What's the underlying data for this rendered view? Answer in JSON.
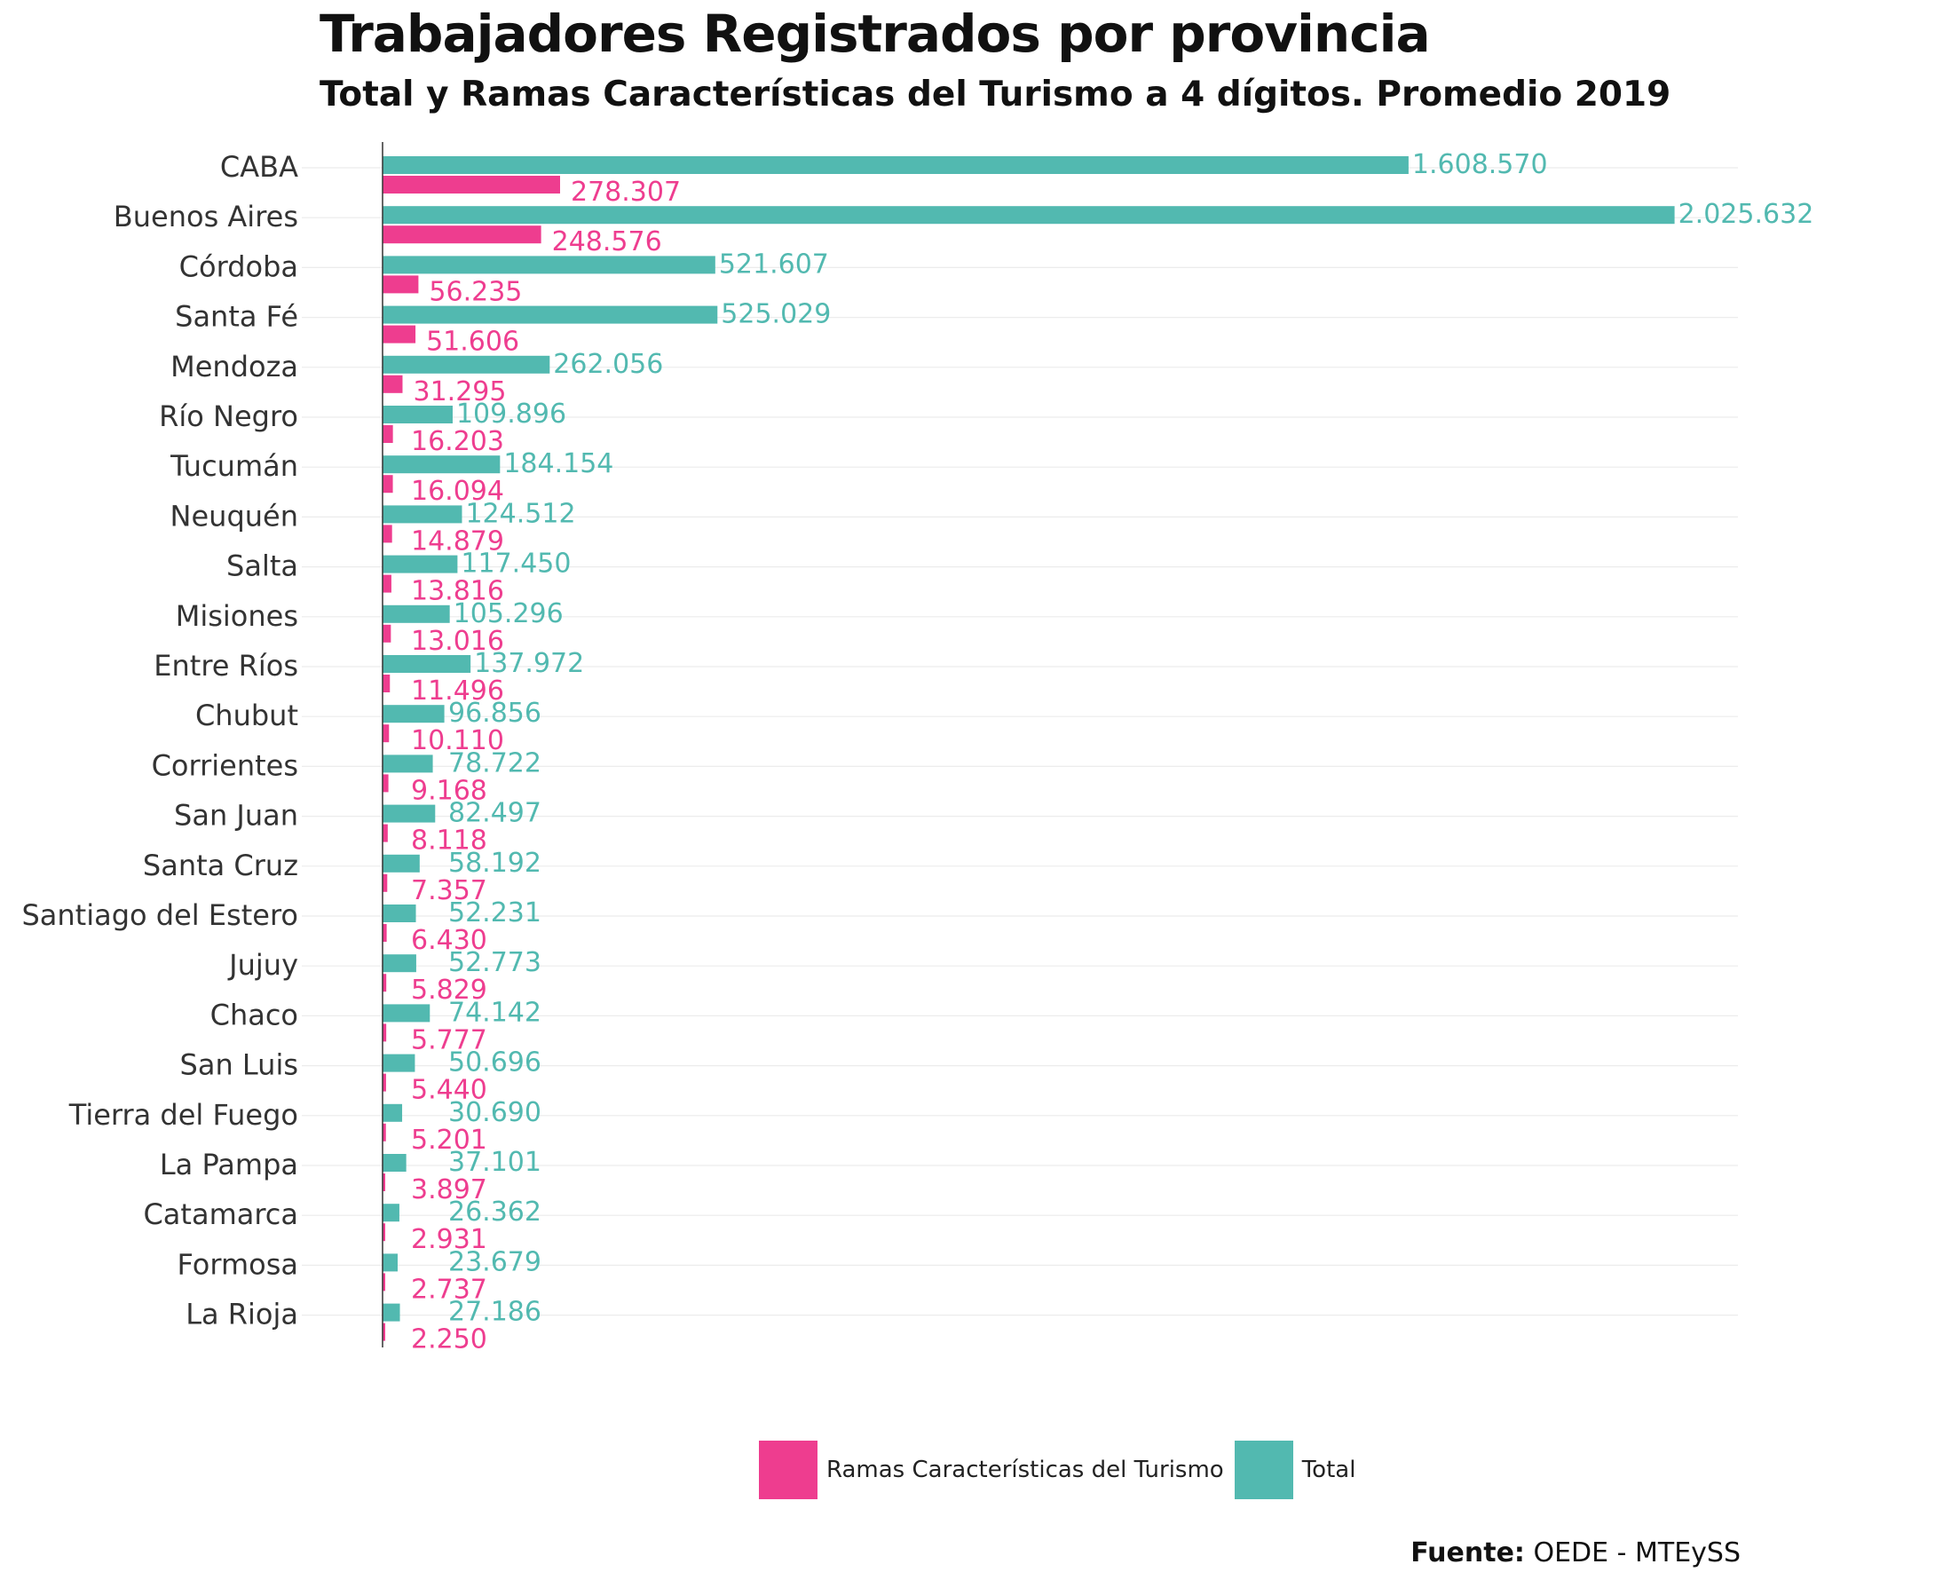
{
  "chart_data": {
    "type": "bar",
    "orientation": "horizontal",
    "title": "Trabajadores Registrados por provincia",
    "subtitle": "Total y Ramas Características del Turismo a 4 dígitos. Promedio 2019",
    "categories": [
      "CABA",
      "Buenos Aires",
      "Córdoba",
      "Santa Fé",
      "Mendoza",
      "Río Negro",
      "Tucumán",
      "Neuquén",
      "Salta",
      "Misiones",
      "Entre Ríos",
      "Chubut",
      "Corrientes",
      "San Juan",
      "Santa Cruz",
      "Santiago del Estero",
      "Jujuy",
      "Chaco",
      "San Luis",
      "Tierra del Fuego",
      "La Pampa",
      "Catamarca",
      "Formosa",
      "La Rioja"
    ],
    "series": [
      {
        "name": "Total",
        "color": "#52b9b0",
        "values": [
          1608570,
          2025632,
          521607,
          525029,
          262056,
          109896,
          184154,
          124512,
          117450,
          105296,
          137972,
          96856,
          78722,
          82497,
          58192,
          52231,
          52773,
          74142,
          50696,
          30690,
          37101,
          26362,
          23679,
          27186
        ],
        "labels": [
          "1.608.570",
          "2.025.632",
          "521.607",
          "525.029",
          "262.056",
          "109.896",
          "184.154",
          "124.512",
          "117.450",
          "105.296",
          "137.972",
          "96.856",
          "78.722",
          "82.497",
          "58.192",
          "52.231",
          "52.773",
          "74.142",
          "50.696",
          "30.690",
          "37.101",
          "26.362",
          "23.679",
          "27.186"
        ]
      },
      {
        "name": "Ramas Características del Turismo",
        "color": "#ee3d8f",
        "values": [
          278307,
          248576,
          56235,
          51606,
          31295,
          16203,
          16094,
          14879,
          13816,
          13016,
          11496,
          10110,
          9168,
          8118,
          7357,
          6430,
          5829,
          5777,
          5440,
          5201,
          3897,
          2931,
          2737,
          2250
        ],
        "labels": [
          "278.307",
          "248.576",
          "56.235",
          "51.606",
          "31.295",
          "16.203",
          "16.094",
          "14.879",
          "13.816",
          "13.016",
          "11.496",
          "10.110",
          "9.168",
          "8.118",
          "7.357",
          "6.430",
          "5.829",
          "5.777",
          "5.440",
          "5.201",
          "3.897",
          "2.931",
          "2.737",
          "2.250"
        ]
      }
    ],
    "xlim": [
      0,
      2125000
    ],
    "grid": "horizontal",
    "legend_position": "bottom",
    "legend": [
      {
        "label": "Ramas Características del Turismo",
        "color": "#ee3d8f"
      },
      {
        "label": "Total",
        "color": "#52b9b0"
      }
    ]
  },
  "source": {
    "prefix": "Fuente:",
    "text": " OEDE - MTEySS"
  }
}
